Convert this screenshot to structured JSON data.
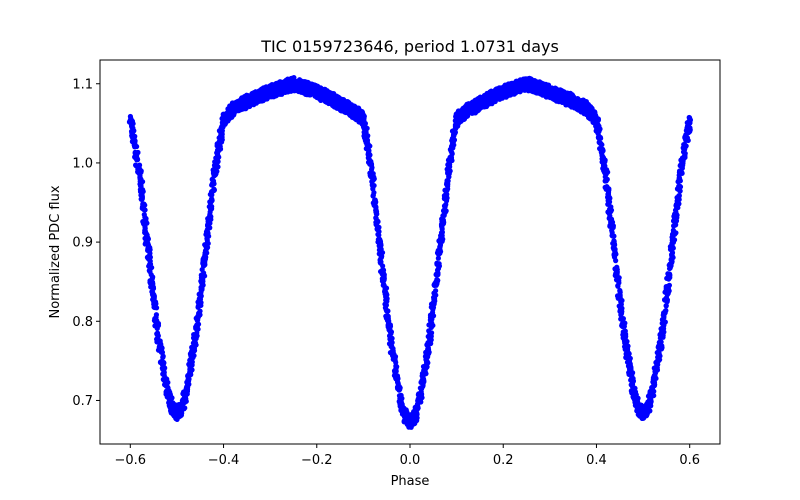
{
  "chart_data": {
    "type": "scatter",
    "title": "TIC 0159723646, period 1.0731 days",
    "xlabel": "Phase",
    "ylabel": "Normalized PDC flux",
    "xlim": [
      -0.665,
      0.665
    ],
    "ylim": [
      0.645,
      1.13
    ],
    "xticks": [
      -0.6,
      -0.4,
      -0.2,
      0.0,
      0.2,
      0.4,
      0.6
    ],
    "xtick_labels": [
      "−0.6",
      "−0.4",
      "−0.2",
      "0.0",
      "0.2",
      "0.4",
      "0.6"
    ],
    "yticks": [
      0.7,
      0.8,
      0.9,
      1.0,
      1.1
    ],
    "ytick_labels": [
      "0.7",
      "0.8",
      "0.9",
      "1.0",
      "1.1"
    ],
    "grid": false,
    "legend": "none",
    "marker_color": "#0000ff",
    "series": [
      {
        "phase": [
          -0.6,
          -0.58,
          -0.56,
          -0.54,
          -0.52,
          -0.51,
          -0.5,
          -0.49,
          -0.48,
          -0.46,
          -0.44,
          -0.42,
          -0.4,
          -0.38,
          -0.35,
          -0.3,
          -0.25,
          -0.2,
          -0.15,
          -0.12,
          -0.1,
          -0.09,
          -0.08,
          -0.06,
          -0.04,
          -0.02,
          -0.01,
          0.0,
          0.01,
          0.02,
          0.04,
          0.06,
          0.08,
          0.09,
          0.1,
          0.12,
          0.15,
          0.2,
          0.25,
          0.3,
          0.35,
          0.38,
          0.4,
          0.42,
          0.44,
          0.46,
          0.48,
          0.49,
          0.5,
          0.51,
          0.52,
          0.54,
          0.56,
          0.58,
          0.6
        ],
        "flux": [
          1.055,
          0.985,
          0.88,
          0.78,
          0.71,
          0.69,
          0.683,
          0.69,
          0.71,
          0.78,
          0.88,
          0.985,
          1.055,
          1.068,
          1.078,
          1.09,
          1.1,
          1.09,
          1.075,
          1.065,
          1.055,
          1.02,
          0.975,
          0.87,
          0.77,
          0.7,
          0.68,
          0.672,
          0.68,
          0.7,
          0.77,
          0.87,
          0.975,
          1.02,
          1.055,
          1.065,
          1.075,
          1.09,
          1.1,
          1.09,
          1.078,
          1.068,
          1.055,
          0.985,
          0.88,
          0.78,
          0.71,
          0.69,
          0.683,
          0.69,
          0.71,
          0.78,
          0.88,
          0.985,
          1.055
        ]
      }
    ]
  }
}
